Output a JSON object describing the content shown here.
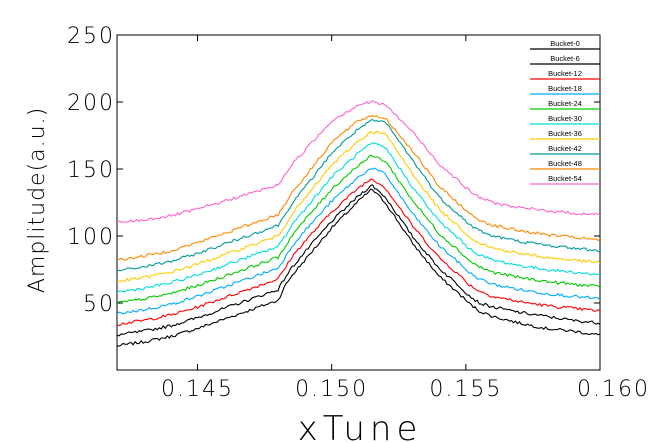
{
  "chart_data": {
    "type": "line",
    "title": "",
    "xlabel": "xTune",
    "ylabel": "Amplitude(a.u.)",
    "xlim": [
      0.142,
      0.16
    ],
    "ylim": [
      0,
      250
    ],
    "xticks": [
      0.145,
      0.15,
      0.155,
      0.16
    ],
    "xtick_labels": [
      "0.145",
      "0.150",
      "0.155",
      "0.160"
    ],
    "yticks": [
      50,
      100,
      150,
      200,
      250
    ],
    "ytick_labels": [
      "50",
      "100",
      "150",
      "200",
      "250"
    ],
    "grid": false,
    "legend_position": "top-right",
    "x": [
      0.142,
      0.143,
      0.144,
      0.145,
      0.146,
      0.147,
      0.148,
      0.1483,
      0.1485,
      0.149,
      0.15,
      0.151,
      0.1515,
      0.152,
      0.153,
      0.154,
      0.1548,
      0.1551,
      0.1555,
      0.156,
      0.157,
      0.158,
      0.159,
      0.16
    ],
    "series": [
      {
        "name": "Bucket-0",
        "color": "#000000",
        "values": [
          18,
          21,
          25,
          31,
          38,
          45,
          52,
          64,
          70,
          82,
          106,
          126,
          135,
          125,
          95,
          70,
          56,
          50,
          44,
          40,
          35,
          31,
          29,
          26
        ]
      },
      {
        "name": "Bucket-6",
        "color": "#000000",
        "values": [
          26,
          29,
          33,
          39,
          46,
          53,
          60,
          70,
          76,
          88,
          111,
          130,
          138,
          129,
          100,
          76,
          62,
          56,
          50,
          47,
          43,
          40,
          37,
          35
        ]
      },
      {
        "name": "Bucket-12",
        "color": "#ff0000",
        "values": [
          34,
          37,
          41,
          47,
          54,
          61,
          68,
          77,
          84,
          96,
          118,
          136,
          143,
          136,
          108,
          84,
          70,
          64,
          59,
          55,
          51,
          48,
          46,
          44
        ]
      },
      {
        "name": "Bucket-18",
        "color": "#00aaff",
        "values": [
          42,
          45,
          49,
          55,
          62,
          69,
          76,
          85,
          92,
          104,
          126,
          144,
          151,
          146,
          117,
          93,
          79,
          73,
          68,
          64,
          60,
          57,
          55,
          53
        ]
      },
      {
        "name": "Bucket-24",
        "color": "#00cc00",
        "values": [
          50,
          53,
          57,
          63,
          70,
          77,
          84,
          93,
          100,
          112,
          135,
          153,
          160,
          156,
          127,
          102,
          88,
          82,
          77,
          73,
          69,
          66,
          64,
          62
        ]
      },
      {
        "name": "Bucket-30",
        "color": "#00dddd",
        "values": [
          58,
          61,
          65,
          71,
          78,
          85,
          92,
          101,
          108,
          120,
          144,
          162,
          169,
          166,
          137,
          111,
          97,
          91,
          86,
          82,
          78,
          75,
          73,
          71
        ]
      },
      {
        "name": "Bucket-36",
        "color": "#ffcc00",
        "values": [
          66,
          69,
          73,
          79,
          86,
          93,
          100,
          109,
          116,
          128,
          153,
          171,
          178,
          176,
          147,
          120,
          106,
          100,
          95,
          91,
          87,
          84,
          82,
          80
        ]
      },
      {
        "name": "Bucket-42",
        "color": "#009999",
        "values": [
          74,
          77,
          81,
          87,
          94,
          101,
          108,
          117,
          124,
          136,
          162,
          180,
          186,
          185,
          157,
          129,
          115,
          109,
          104,
          100,
          96,
          93,
          91,
          89
        ]
      },
      {
        "name": "Bucket-48",
        "color": "#ff8800",
        "values": [
          82,
          85,
          89,
          95,
          102,
          109,
          116,
          125,
          132,
          144,
          170,
          186,
          190,
          188,
          164,
          137,
          123,
          117,
          112,
          108,
          104,
          101,
          99,
          97
        ]
      },
      {
        "name": "Bucket-54",
        "color": "#ff66cc",
        "values": [
          110,
          112,
          115,
          120,
          126,
          132,
          138,
          147,
          153,
          164,
          186,
          198,
          200,
          198,
          178,
          154,
          140,
          134,
          129,
          125,
          121,
          119,
          117,
          116
        ]
      }
    ]
  }
}
